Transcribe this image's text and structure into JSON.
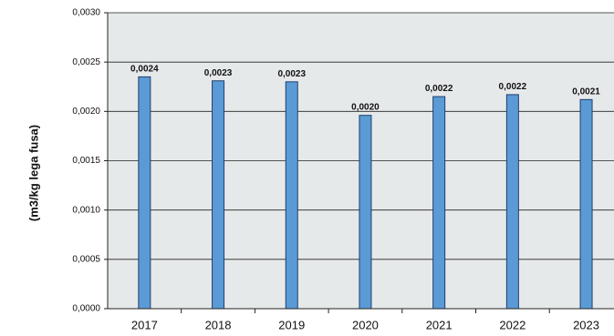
{
  "chart_data": {
    "type": "bar",
    "title": "",
    "xlabel": "",
    "ylabel": "(m3/kg lega fusa)",
    "categories": [
      "2017",
      "2018",
      "2019",
      "2020",
      "2021",
      "2022",
      "2023"
    ],
    "values": [
      0.00235,
      0.00231,
      0.0023,
      0.00196,
      0.00215,
      0.00217,
      0.00212
    ],
    "data_labels": [
      "0,0024",
      "0,0023",
      "0,0023",
      "0,0020",
      "0,0022",
      "0,0022",
      "0,0021"
    ],
    "ylim": [
      0,
      0.003
    ],
    "yticks": [
      0,
      0.0005,
      0.001,
      0.0015,
      0.002,
      0.0025,
      0.003
    ],
    "ytick_labels": [
      "0,0000",
      "0,0005",
      "0,0010",
      "0,0015",
      "0,0020",
      "0,0025",
      "0,0030"
    ],
    "grid": true,
    "legend": "none",
    "colors": {
      "bar_fill": "#5b9bd5",
      "bar_stroke": "#1f3f6e",
      "plot_background": "#e6e9ea",
      "gridline": "#222222"
    }
  }
}
